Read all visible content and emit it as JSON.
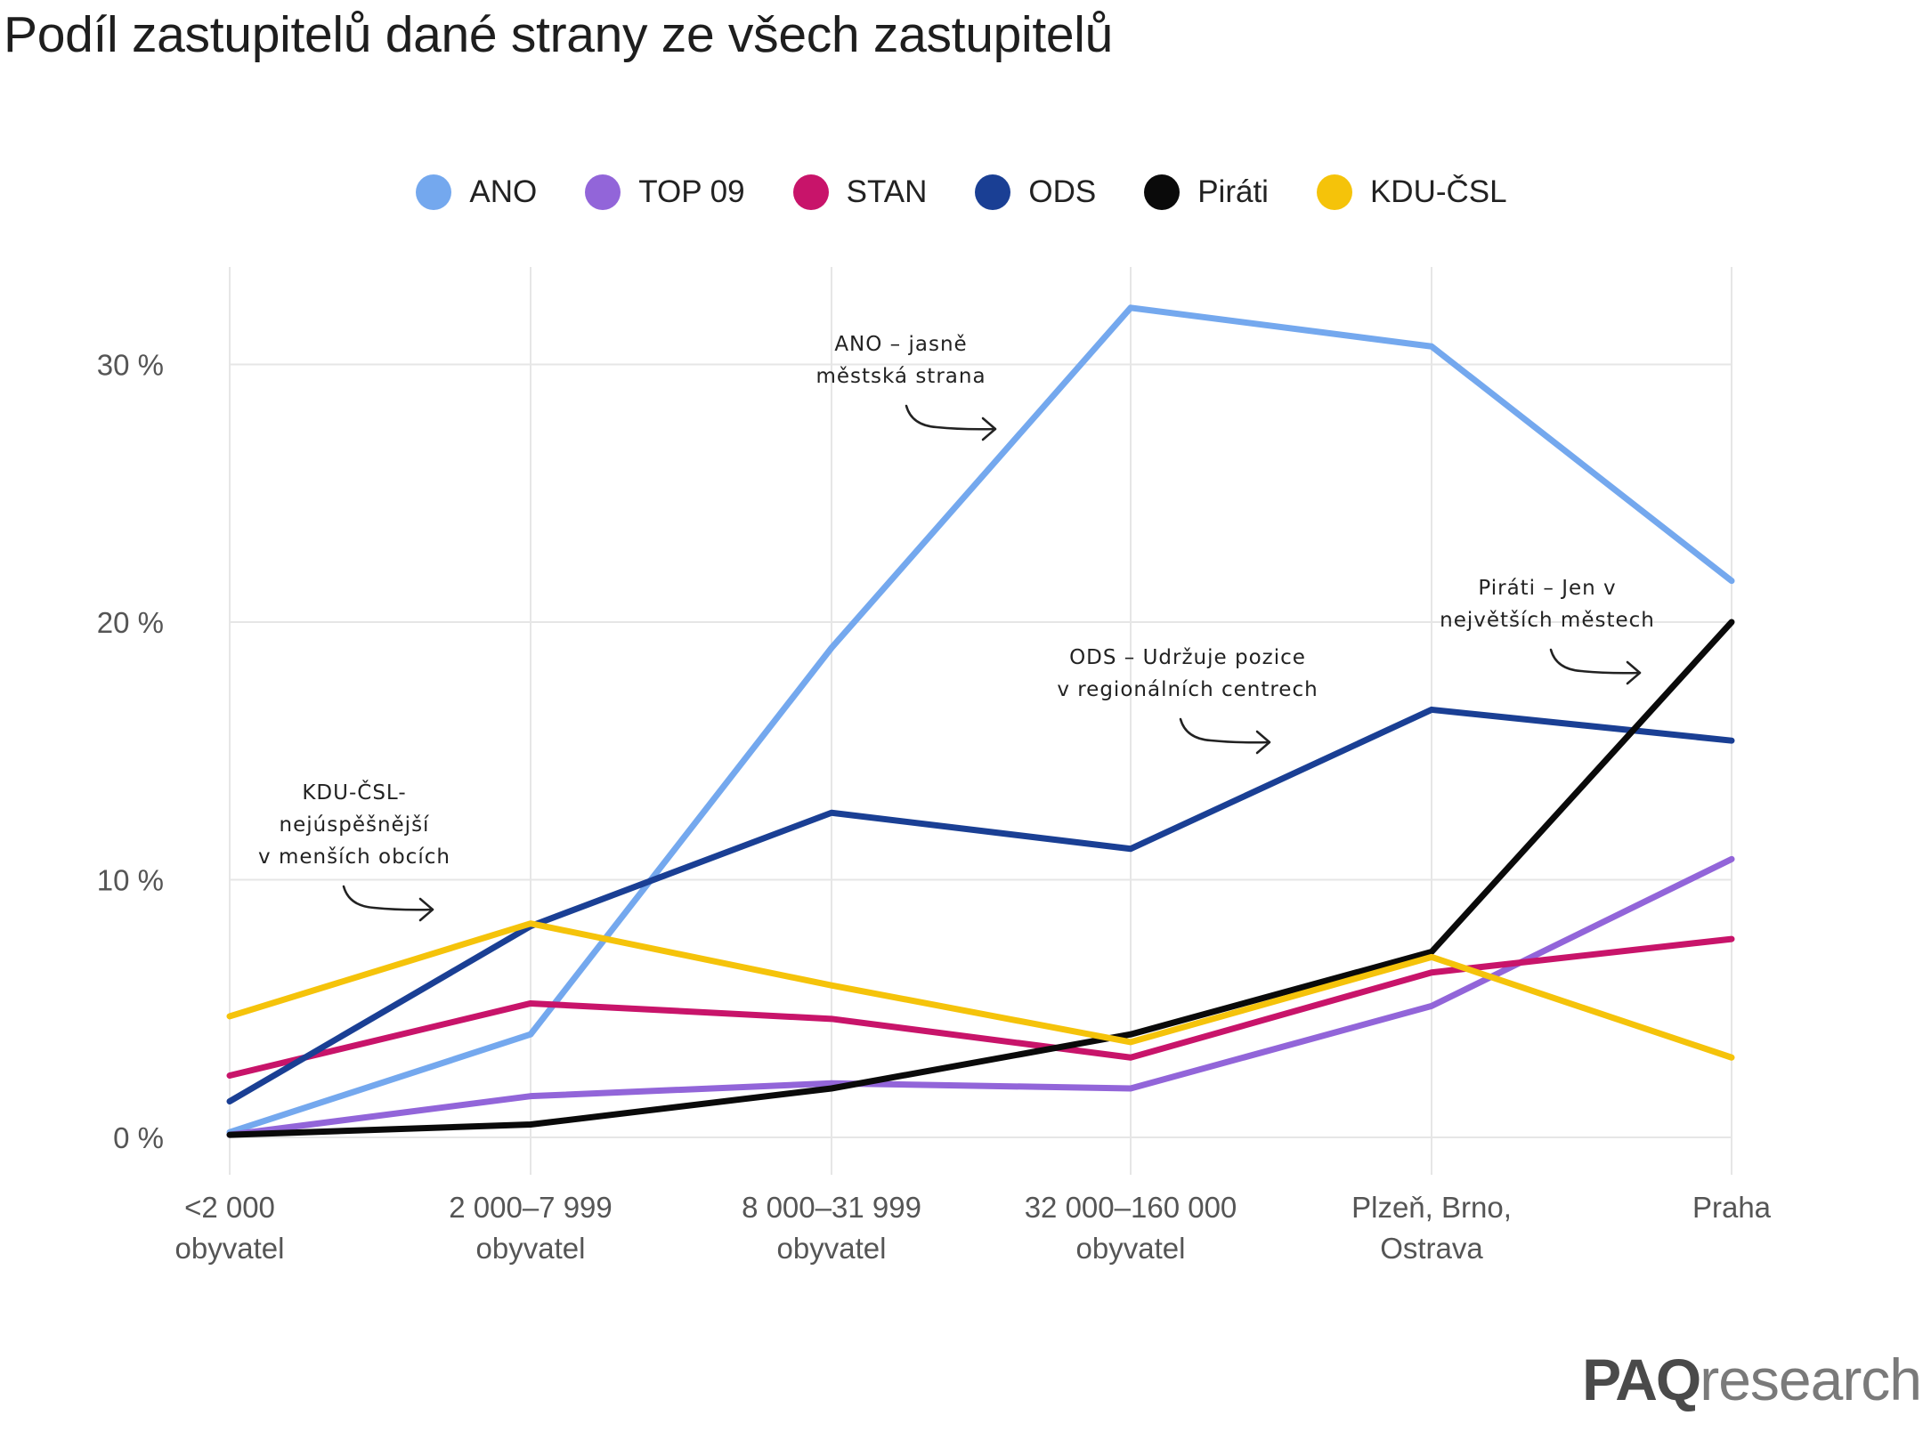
{
  "chart_data": {
    "type": "line",
    "title": "Podíl zastupitelů dané strany ze všech zastupitelů",
    "categories": [
      [
        "<2 000",
        "obyvatel"
      ],
      [
        "2 000–7 999",
        "obyvatel"
      ],
      [
        "8 000–31 999",
        "obyvatel"
      ],
      [
        "32 000–160 000",
        "obyvatel"
      ],
      [
        "Plzeň, Brno,",
        "Ostrava"
      ],
      [
        "Praha"
      ]
    ],
    "yticks": [
      {
        "value": 0,
        "label": "0 %"
      },
      {
        "value": 10,
        "label": "10 %"
      },
      {
        "value": 20,
        "label": "20 %"
      },
      {
        "value": 30,
        "label": "30 %"
      }
    ],
    "ylim": [
      -1.3,
      34
    ],
    "grid": true,
    "legend_position": "top-center",
    "series": [
      {
        "name": "ANO",
        "color": "#74a8ee",
        "values": [
          0.2,
          4.0,
          19.0,
          32.2,
          30.7,
          21.6
        ]
      },
      {
        "name": "TOP 09",
        "color": "#9265d9",
        "values": [
          0.1,
          1.6,
          2.1,
          1.9,
          5.1,
          10.8
        ]
      },
      {
        "name": "STAN",
        "color": "#c8146a",
        "values": [
          2.4,
          5.2,
          4.6,
          3.1,
          6.4,
          7.7
        ]
      },
      {
        "name": "ODS",
        "color": "#1a3f94",
        "values": [
          1.4,
          8.2,
          12.6,
          11.2,
          16.6,
          15.4
        ]
      },
      {
        "name": "Piráti",
        "color": "#0a0a0a",
        "values": [
          0.1,
          0.5,
          1.9,
          4.0,
          7.2,
          20.0
        ]
      },
      {
        "name": "KDU-ČSL",
        "color": "#f5c30a",
        "values": [
          4.7,
          8.3,
          5.9,
          3.7,
          7.0,
          3.1
        ]
      }
    ],
    "annotations": [
      {
        "lines": [
          "ANO – jasně",
          "městská strana"
        ]
      },
      {
        "lines": [
          "ODS – Udržuje pozice",
          "v regionálních centrech"
        ]
      },
      {
        "lines": [
          "Piráti – Jen v",
          "největších městech"
        ]
      },
      {
        "lines": [
          "KDU-ČSL-",
          "nejúspěšnější",
          "v menších obcích"
        ]
      }
    ]
  },
  "logo": {
    "part1": "PAQ",
    "part2": "research"
  }
}
